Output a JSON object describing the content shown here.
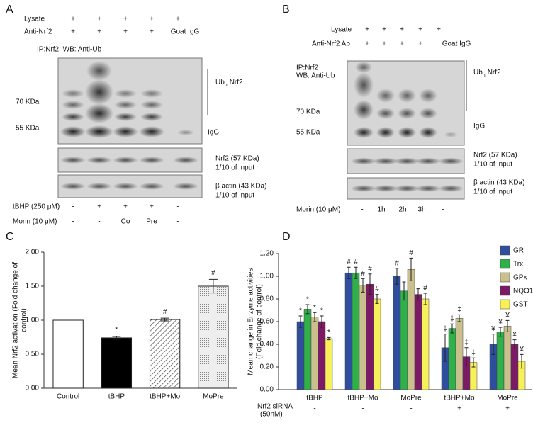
{
  "blot_a": {
    "label": "A",
    "lysate": {
      "name": "Lysate",
      "marks": [
        "+",
        "+",
        "+",
        "+",
        "+"
      ]
    },
    "antibody": {
      "name": "Anti-Nrf2",
      "marks": [
        "+",
        "+",
        "+",
        "+",
        "Goat IgG"
      ]
    },
    "probe": [
      "IP:Nrf2; WB: Anti-Ub"
    ],
    "size_markers": [
      "70 KDa",
      "55 KDa"
    ],
    "ub_label": {
      "main": "Ub",
      "sub": "n",
      "rest": "Nrf2"
    },
    "igg": "IgG",
    "input_blots": [
      {
        "name": "Nrf2 (57 KDa)",
        "note": "1/10 of input"
      },
      {
        "name": "β actin (43 KDa)",
        "note": "1/10 of input"
      }
    ],
    "treatments": [
      {
        "name": "tBHP (250 μM)",
        "marks": [
          "-",
          "+",
          "+",
          "+",
          "-"
        ]
      },
      {
        "name": "Morin (10 μM)",
        "marks": [
          "-",
          "-",
          "Co",
          "Pre",
          "-"
        ]
      }
    ]
  },
  "blot_b": {
    "label": "B",
    "lysate": {
      "name": "Lysate",
      "marks": [
        "+",
        "+",
        "+",
        "+",
        "+"
      ]
    },
    "antibody": {
      "name": "Anti-Nrf2 Ab",
      "marks": [
        "+",
        "+",
        "+",
        "+",
        "Goat IgG"
      ]
    },
    "probe": [
      "IP:Nrf2",
      "WB: Anti-Ub"
    ],
    "size_markers": [
      "70 KDa",
      "55 KDa"
    ],
    "ub_label": {
      "main": "Ub",
      "sub": "n",
      "rest": "Nrf2"
    },
    "igg": "IgG",
    "input_blots": [
      {
        "name": "Nrf2 (57 KDa)",
        "note": "1/10 of input"
      },
      {
        "name": "β actin (43 KDa)",
        "note": "1/10 of input"
      }
    ],
    "treatments": [
      {
        "name": "Morin (10 μM)",
        "marks": [
          "-",
          "1h",
          "2h",
          "3h",
          "-"
        ]
      }
    ]
  },
  "chart_data": [
    {
      "type": "bar",
      "label": "C",
      "y_label": [
        "Mean Nrf2 activation (Fold change of",
        "control)"
      ],
      "categories": [
        "Control",
        "tBHP",
        "tBHP+Mo",
        "MoPre"
      ],
      "values": [
        1.0,
        0.74,
        1.01,
        1.5
      ],
      "errors": [
        0.0,
        0.02,
        0.02,
        0.1
      ],
      "annotations": [
        null,
        "*",
        "#",
        "#"
      ],
      "fill_styles": [
        "white",
        "black",
        "hatch",
        "dots"
      ],
      "ylim": [
        0,
        2
      ],
      "yticks": [
        {
          "value": 0,
          "label": "0.00"
        },
        {
          "value": 0.5,
          "label": "0.50"
        },
        {
          "value": 1,
          "label": "1.00"
        },
        {
          "value": 1.5,
          "label": "1.50"
        },
        {
          "value": 2,
          "label": "2.00"
        }
      ]
    },
    {
      "type": "bar",
      "label": "D",
      "y_label": [
        "Mean change in Enzyme activities",
        "(Fold change of control)"
      ],
      "categories": [
        "tBHP",
        "tBHP+Mo",
        "MoPre",
        "tBHP+Mo",
        "MoPre"
      ],
      "series": [
        {
          "name": "GR",
          "color": "#2f4f9e",
          "values": [
            0.6,
            1.03,
            1.0,
            0.37,
            0.4
          ],
          "errors": [
            0.05,
            0.05,
            0.07,
            0.12,
            0.09
          ],
          "annotations": [
            "*",
            "#",
            "#",
            "‡",
            "¥"
          ]
        },
        {
          "name": "Trx",
          "color": "#2fb04a",
          "values": [
            0.71,
            1.03,
            0.87,
            0.54,
            0.51
          ],
          "errors": [
            0.04,
            0.05,
            0.08,
            0.04,
            0.04
          ],
          "annotations": [
            "*",
            "#",
            null,
            "‡",
            "¥"
          ]
        },
        {
          "name": "GPx",
          "color": "#c9c08e",
          "values": [
            0.64,
            0.92,
            1.06,
            0.63,
            0.56
          ],
          "errors": [
            0.04,
            0.06,
            0.1,
            0.03,
            0.05
          ],
          "annotations": [
            "*",
            "#",
            "#",
            "‡",
            "¥"
          ]
        },
        {
          "name": "NQO1",
          "color": "#7d1a66",
          "values": [
            0.6,
            0.93,
            0.84,
            0.29,
            0.4
          ],
          "errors": [
            0.05,
            0.09,
            0.05,
            0.08,
            0.04
          ],
          "annotations": [
            "*",
            "#",
            null,
            "‡",
            "¥"
          ]
        },
        {
          "name": "GST",
          "color": "#f7f05a",
          "values": [
            0.45,
            0.8,
            0.8,
            0.24,
            0.25
          ],
          "errors": [
            0.01,
            0.04,
            0.05,
            0.04,
            0.06
          ],
          "annotations": [
            "*",
            "#",
            "#",
            "‡",
            "¥"
          ]
        }
      ],
      "treatment": {
        "name": [
          "Nrf2  siRNA",
          "(50nM)"
        ],
        "marks": [
          "-",
          "-",
          "-",
          "+",
          "+"
        ]
      },
      "legend": "top-right",
      "ylim": [
        0,
        1.2
      ],
      "yticks": [
        {
          "value": 0,
          "label": "0.00"
        },
        {
          "value": 0.2,
          "label": "0.20"
        },
        {
          "value": 0.4,
          "label": "0.40"
        },
        {
          "value": 0.6,
          "label": "0.60"
        },
        {
          "value": 0.8,
          "label": "0.80"
        },
        {
          "value": 1,
          "label": "1.00"
        },
        {
          "value": 1.2,
          "label": "1.20"
        }
      ]
    }
  ]
}
